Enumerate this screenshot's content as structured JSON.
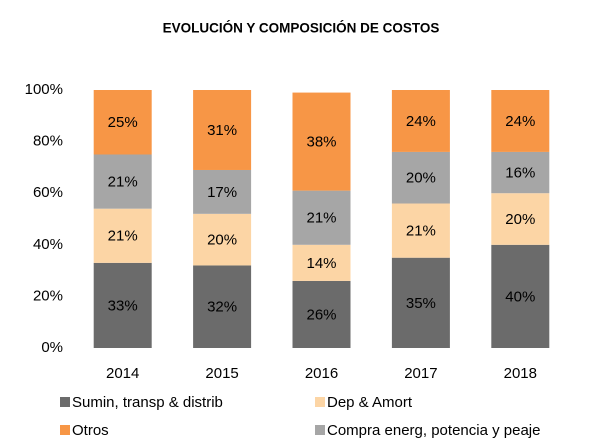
{
  "chart_data": {
    "type": "stacked_bar",
    "title": "EVOLUCIÓN Y COMPOSICIÓN DE COSTOS",
    "categories": [
      "2014",
      "2015",
      "2016",
      "2017",
      "2018"
    ],
    "series": [
      {
        "name": "Sumin, transp & distrib",
        "color": "#6b6b6b",
        "values": [
          33,
          32,
          26,
          35,
          40
        ],
        "value_labels": [
          "33%",
          "32%",
          "26%",
          "35%",
          "40%"
        ]
      },
      {
        "name": "Dep & Amort",
        "color": "#fcd5a5",
        "values": [
          21,
          20,
          14,
          21,
          20
        ],
        "value_labels": [
          "21%",
          "20%",
          "14%",
          "21%",
          "20%"
        ]
      },
      {
        "name": "Compra energ, potencia y peaje",
        "color": "#a6a6a6",
        "values": [
          21,
          17,
          21,
          20,
          16
        ],
        "value_labels": [
          "21%",
          "17%",
          "21%",
          "20%",
          "16%"
        ]
      },
      {
        "name": "Otros",
        "color": "#f79646",
        "values": [
          25,
          31,
          38,
          24,
          24
        ],
        "value_labels": [
          "25%",
          "31%",
          "38%",
          "24%",
          "24%"
        ]
      }
    ],
    "ylim": [
      0,
      100
    ],
    "yticks": [
      {
        "value": 0,
        "label": "0%"
      },
      {
        "value": 20,
        "label": "20%"
      },
      {
        "value": 40,
        "label": "40%"
      },
      {
        "value": 60,
        "label": "60%"
      },
      {
        "value": 80,
        "label": "80%"
      },
      {
        "value": 100,
        "label": "100%"
      }
    ],
    "legend": "bottom"
  }
}
